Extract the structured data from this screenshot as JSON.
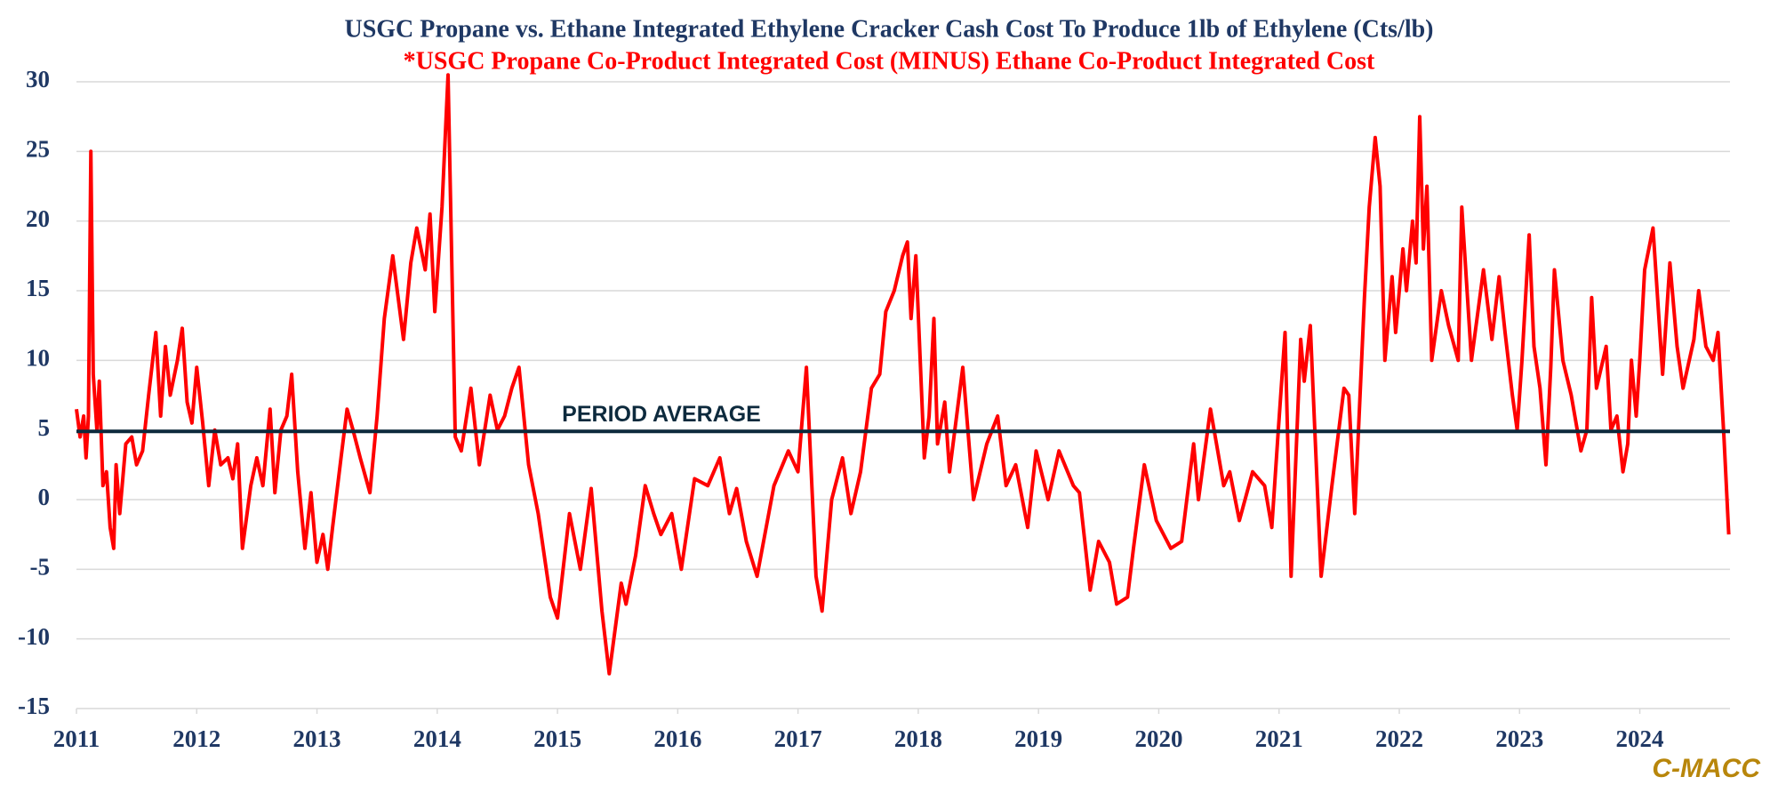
{
  "chart_data": {
    "type": "line",
    "title": "USGC Propane vs. Ethane Integrated Ethylene Cracker Cash Cost To Produce 1lb of Ethylene (Cts/lb)",
    "subtitle": "*USGC Propane Co-Product Integrated Cost (MINUS) Ethane Co-Product Integrated Cost",
    "source": "C-MACC",
    "reference_line": {
      "label": "PERIOD AVERAGE",
      "value": 4.9,
      "color": "#0d2a3d"
    },
    "grid": true,
    "xlim": [
      2011,
      2024.75
    ],
    "xticks": [
      2011,
      2012,
      2013,
      2014,
      2015,
      2016,
      2017,
      2018,
      2019,
      2020,
      2021,
      2022,
      2023,
      2024
    ],
    "ylim": [
      -15,
      30
    ],
    "yticks": [
      -15,
      -10,
      -5,
      0,
      5,
      10,
      15,
      20,
      25,
      30
    ],
    "series": [
      {
        "color": "#ff0000",
        "x": [
          2011.0,
          2011.03,
          2011.06,
          2011.08,
          2011.1,
          2011.12,
          2011.14,
          2011.17,
          2011.19,
          2011.22,
          2011.25,
          2011.28,
          2011.31,
          2011.33,
          2011.36,
          2011.41,
          2011.46,
          2011.5,
          2011.55,
          2011.6,
          2011.66,
          2011.7,
          2011.74,
          2011.78,
          2011.84,
          2011.88,
          2011.92,
          2011.96,
          2012.0,
          2012.05,
          2012.1,
          2012.15,
          2012.2,
          2012.26,
          2012.3,
          2012.34,
          2012.38,
          2012.45,
          2012.5,
          2012.55,
          2012.61,
          2012.65,
          2012.7,
          2012.75,
          2012.79,
          2012.84,
          2012.9,
          2012.95,
          2013.0,
          2013.05,
          2013.09,
          2013.13,
          2013.2,
          2013.25,
          2013.3,
          2013.36,
          2013.44,
          2013.5,
          2013.56,
          2013.63,
          2013.72,
          2013.78,
          2013.83,
          2013.9,
          2013.94,
          2013.98,
          2014.04,
          2014.09,
          2014.15,
          2014.2,
          2014.28,
          2014.35,
          2014.44,
          2014.5,
          2014.56,
          2014.62,
          2014.68,
          2014.76,
          2014.84,
          2014.94,
          2015.0,
          2015.1,
          2015.19,
          2015.28,
          2015.37,
          2015.43,
          2015.53,
          2015.57,
          2015.65,
          2015.73,
          2015.8,
          2015.86,
          2015.95,
          2016.03,
          2016.14,
          2016.25,
          2016.35,
          2016.43,
          2016.49,
          2016.57,
          2016.66,
          2016.8,
          2016.92,
          2017.0,
          2017.07,
          2017.15,
          2017.2,
          2017.28,
          2017.37,
          2017.44,
          2017.52,
          2017.61,
          2017.68,
          2017.73,
          2017.8,
          2017.87,
          2017.91,
          2017.94,
          2017.98,
          2018.05,
          2018.09,
          2018.13,
          2018.16,
          2018.22,
          2018.26,
          2018.37,
          2018.46,
          2018.57,
          2018.66,
          2018.73,
          2018.81,
          2018.91,
          2018.98,
          2019.08,
          2019.17,
          2019.29,
          2019.34,
          2019.43,
          2019.5,
          2019.59,
          2019.65,
          2019.74,
          2019.79,
          2019.88,
          2019.98,
          2020.1,
          2020.19,
          2020.29,
          2020.33,
          2020.43,
          2020.48,
          2020.54,
          2020.59,
          2020.67,
          2020.78,
          2020.88,
          2020.94,
          2020.99,
          2021.05,
          2021.1,
          2021.18,
          2021.21,
          2021.26,
          2021.35,
          2021.44,
          2021.54,
          2021.58,
          2021.63,
          2021.71,
          2021.75,
          2021.8,
          2021.84,
          2021.88,
          2021.94,
          2021.97,
          2022.03,
          2022.06,
          2022.11,
          2022.14,
          2022.17,
          2022.2,
          2022.23,
          2022.27,
          2022.35,
          2022.41,
          2022.49,
          2022.52,
          2022.6,
          2022.7,
          2022.77,
          2022.83,
          2022.88,
          2022.94,
          2022.98,
          2023.02,
          2023.08,
          2023.12,
          2023.17,
          2023.22,
          2023.26,
          2023.29,
          2023.36,
          2023.43,
          2023.51,
          2023.56,
          2023.6,
          2023.64,
          2023.72,
          2023.76,
          2023.81,
          2023.86,
          2023.9,
          2023.93,
          2023.97,
          2024.0,
          2024.04,
          2024.11,
          2024.19,
          2024.25,
          2024.31,
          2024.36,
          2024.45,
          2024.49,
          2024.55,
          2024.61,
          2024.65,
          2024.7,
          2024.74
        ],
        "values": [
          6.5,
          4.5,
          6,
          3,
          6,
          25,
          9,
          5,
          8.5,
          1,
          2,
          -2,
          -3.5,
          2.5,
          -1,
          4,
          4.5,
          2.5,
          3.5,
          7.5,
          12,
          6,
          11,
          7.5,
          10,
          12.3,
          7,
          5.5,
          9.5,
          5.5,
          1,
          5,
          2.5,
          3,
          1.5,
          4,
          -3.5,
          1,
          3,
          1,
          6.5,
          0.5,
          5,
          6,
          9,
          2,
          -3.5,
          0.5,
          -4.5,
          -2.5,
          -5,
          -2,
          3,
          6.5,
          5,
          3,
          0.5,
          6,
          13,
          17.5,
          11.5,
          17,
          19.5,
          16.5,
          20.5,
          13.5,
          21,
          30.5,
          4.5,
          3.5,
          8,
          2.5,
          7.5,
          5,
          6,
          8,
          9.5,
          2.5,
          -1,
          -7,
          -8.5,
          -1,
          -5,
          0.8,
          -8,
          -12.5,
          -6,
          -7.5,
          -4,
          1,
          -1,
          -2.5,
          -1,
          -5,
          1.5,
          1,
          3,
          -1,
          0.8,
          -3,
          -5.5,
          1,
          3.5,
          2,
          9.5,
          -5.5,
          -8,
          0,
          3,
          -1,
          2,
          8,
          9,
          13.5,
          15,
          17.5,
          18.5,
          13,
          17.5,
          3,
          6,
          13,
          4,
          7,
          2,
          9.5,
          0,
          4,
          6,
          1,
          2.5,
          -2,
          3.5,
          0,
          3.5,
          1,
          0.5,
          -6.5,
          -3,
          -4.5,
          -7.5,
          -7,
          -3.5,
          2.5,
          -1.5,
          -3.5,
          -3,
          4,
          0,
          6.5,
          4,
          1,
          2,
          -1.5,
          2,
          1,
          -2,
          4.5,
          12,
          -5.5,
          11.5,
          8.5,
          12.5,
          -5.5,
          1,
          8,
          7.5,
          -1,
          14.5,
          21,
          26,
          22.5,
          10,
          16,
          12,
          18,
          15,
          20,
          17,
          27.5,
          18,
          22.5,
          10,
          15,
          12.5,
          10,
          21,
          10,
          16.5,
          11.5,
          16,
          12,
          7.5,
          5,
          10,
          19,
          11,
          8,
          2.5,
          9.5,
          16.5,
          10,
          7.5,
          3.5,
          5,
          14.5,
          8,
          11,
          5,
          6,
          2,
          4,
          10,
          6,
          10,
          16.5,
          19.5,
          9,
          17,
          11,
          8,
          11.5,
          15,
          11,
          10,
          12,
          4.5,
          -2.5
        ]
      }
    ]
  }
}
